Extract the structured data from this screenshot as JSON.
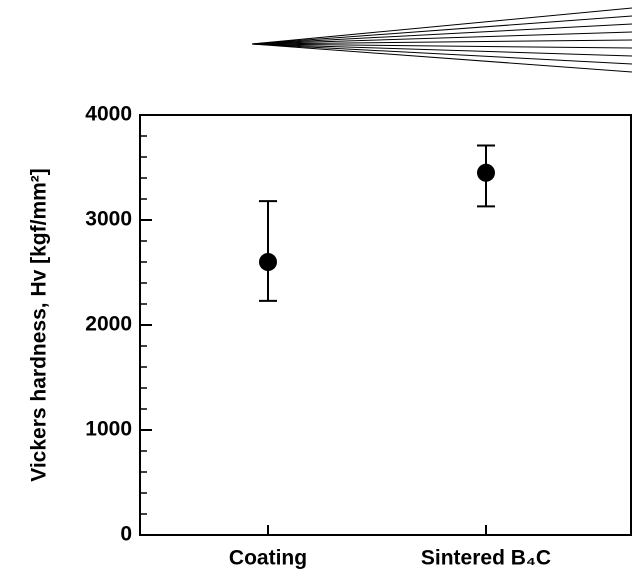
{
  "chart_data": {
    "type": "errorbar",
    "ylabel": "Vickers hardness, Hv [kgf/mm²]",
    "categories": [
      "Coating",
      "Sintered B₄C"
    ],
    "values": [
      2600,
      3450
    ],
    "err_minus": [
      370,
      320
    ],
    "err_plus": [
      580,
      260
    ],
    "color": "#000000",
    "ylim": [
      0,
      4000
    ],
    "yticks": [
      0,
      1000,
      2000,
      3000,
      4000
    ],
    "yminorticks": [
      200,
      400,
      600,
      800,
      1200,
      1400,
      1600,
      1800,
      2200,
      2400,
      2600,
      2800,
      3200,
      3400,
      3600,
      3800
    ]
  }
}
